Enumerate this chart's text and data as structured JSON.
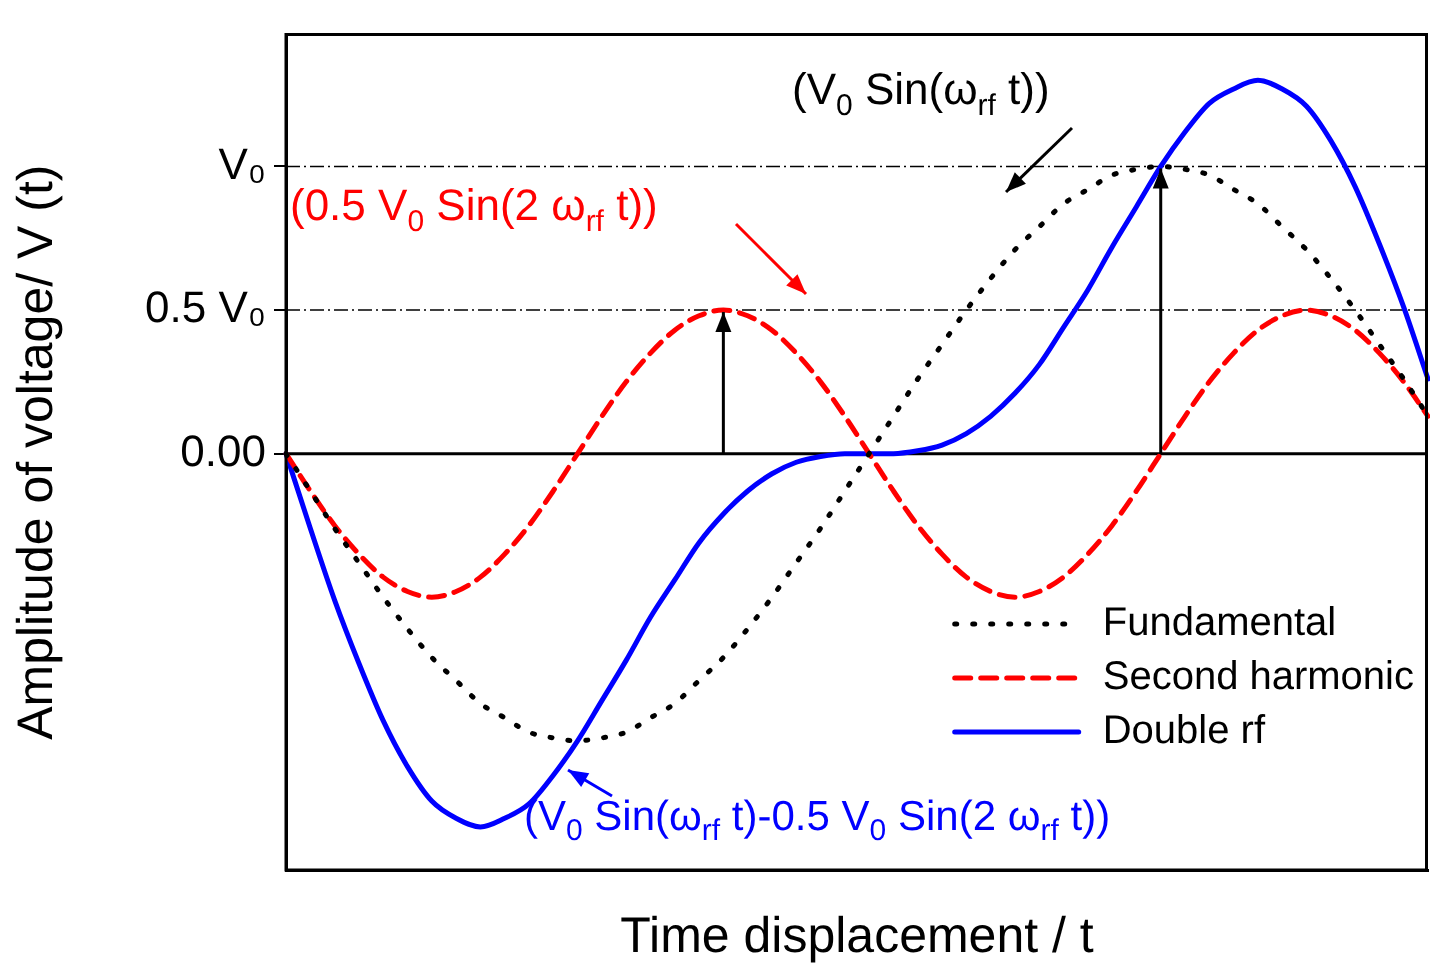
{
  "chart_data": {
    "type": "line",
    "xlabel": "Time displacement / t",
    "ylabel": "Amplitude of voltage/ V (t)",
    "categories": [
      null,
      null,
      null,
      null,
      null,
      null,
      null,
      null,
      null,
      null,
      null,
      null,
      null,
      null,
      null,
      null,
      null,
      null,
      null,
      null,
      null,
      null,
      null,
      null,
      null,
      null,
      null,
      null,
      null,
      null,
      null,
      null,
      null,
      null,
      null,
      null,
      null,
      null,
      null,
      null,
      null,
      null,
      null,
      null,
      null,
      null,
      null,
      null
    ],
    "series": [
      {
        "name": "Fundamental",
        "color": "#000000",
        "line_style": "dotted",
        "values": [
          0,
          -0.13,
          -0.26,
          -0.38,
          -0.5,
          -0.61,
          -0.71,
          -0.79,
          -0.87,
          -0.92,
          -0.97,
          -0.99,
          -1,
          -0.99,
          -0.97,
          -0.92,
          -0.87,
          -0.79,
          -0.71,
          -0.61,
          -0.5,
          -0.38,
          -0.26,
          -0.13,
          0,
          0.13,
          0.26,
          0.38,
          0.5,
          0.61,
          0.71,
          0.79,
          0.87,
          0.92,
          0.97,
          0.99,
          1,
          0.99,
          0.97,
          0.92,
          0.87,
          0.79,
          0.71,
          0.61,
          0.5,
          0.38,
          0.26,
          0.13
        ]
      },
      {
        "name": "Second harmonic",
        "color": "#ff0000",
        "line_style": "dashed",
        "values": [
          0,
          -0.13,
          -0.25,
          -0.35,
          -0.43,
          -0.48,
          -0.5,
          -0.48,
          -0.43,
          -0.35,
          -0.25,
          -0.13,
          0,
          0.13,
          0.25,
          0.35,
          0.43,
          0.48,
          0.5,
          0.48,
          0.43,
          0.35,
          0.25,
          0.13,
          0,
          -0.13,
          -0.25,
          -0.35,
          -0.43,
          -0.48,
          -0.5,
          -0.48,
          -0.43,
          -0.35,
          -0.25,
          -0.13,
          0,
          0.13,
          0.25,
          0.35,
          0.43,
          0.48,
          0.5,
          0.48,
          0.43,
          0.35,
          0.25,
          0.13
        ]
      },
      {
        "name": "Double rf",
        "color": "#0000ff",
        "line_style": "solid",
        "values": [
          0,
          -0.26,
          -0.51,
          -0.73,
          -0.93,
          -1.09,
          -1.21,
          -1.27,
          -1.3,
          -1.27,
          -1.22,
          -1.12,
          -1,
          -0.86,
          -0.72,
          -0.57,
          -0.44,
          -0.31,
          -0.21,
          -0.13,
          -0.07,
          -0.03,
          -0.01,
          0,
          0,
          0,
          0.01,
          0.03,
          0.07,
          0.13,
          0.21,
          0.31,
          0.44,
          0.57,
          0.72,
          0.86,
          1,
          1.12,
          1.22,
          1.27,
          1.3,
          1.27,
          1.21,
          1.09,
          0.93,
          0.73,
          0.51,
          0.26
        ]
      }
    ],
    "ylim": [
      -1.45,
      1.46
    ],
    "yticks": [
      {
        "value": 0,
        "label": "0.00"
      },
      {
        "value": 0.5,
        "label": "0.5 V₀"
      },
      {
        "value": 1,
        "label": "V₀"
      }
    ],
    "tick_labels": "y",
    "marker": "none",
    "legend": "bottom right",
    "ref_lines": [
      {
        "axis": "y",
        "value": 0,
        "line_style": "solid"
      },
      {
        "axis": "y",
        "value": 0.5,
        "line_style": "dashed"
      },
      {
        "axis": "y",
        "value": 1,
        "line_style": "dashed"
      }
    ],
    "annotations": [
      "(V$_{0}$ Sin(ω$_{rf}$ t))",
      "(0.5 V$_{0}$ Sin(2 ω$_{rf}$ t))",
      "(V$_{0}$ Sin(ω$_{rf}$ t)-0.5 V$_{0}$ Sin(2 ω$_{rf}$ t))"
    ]
  }
}
